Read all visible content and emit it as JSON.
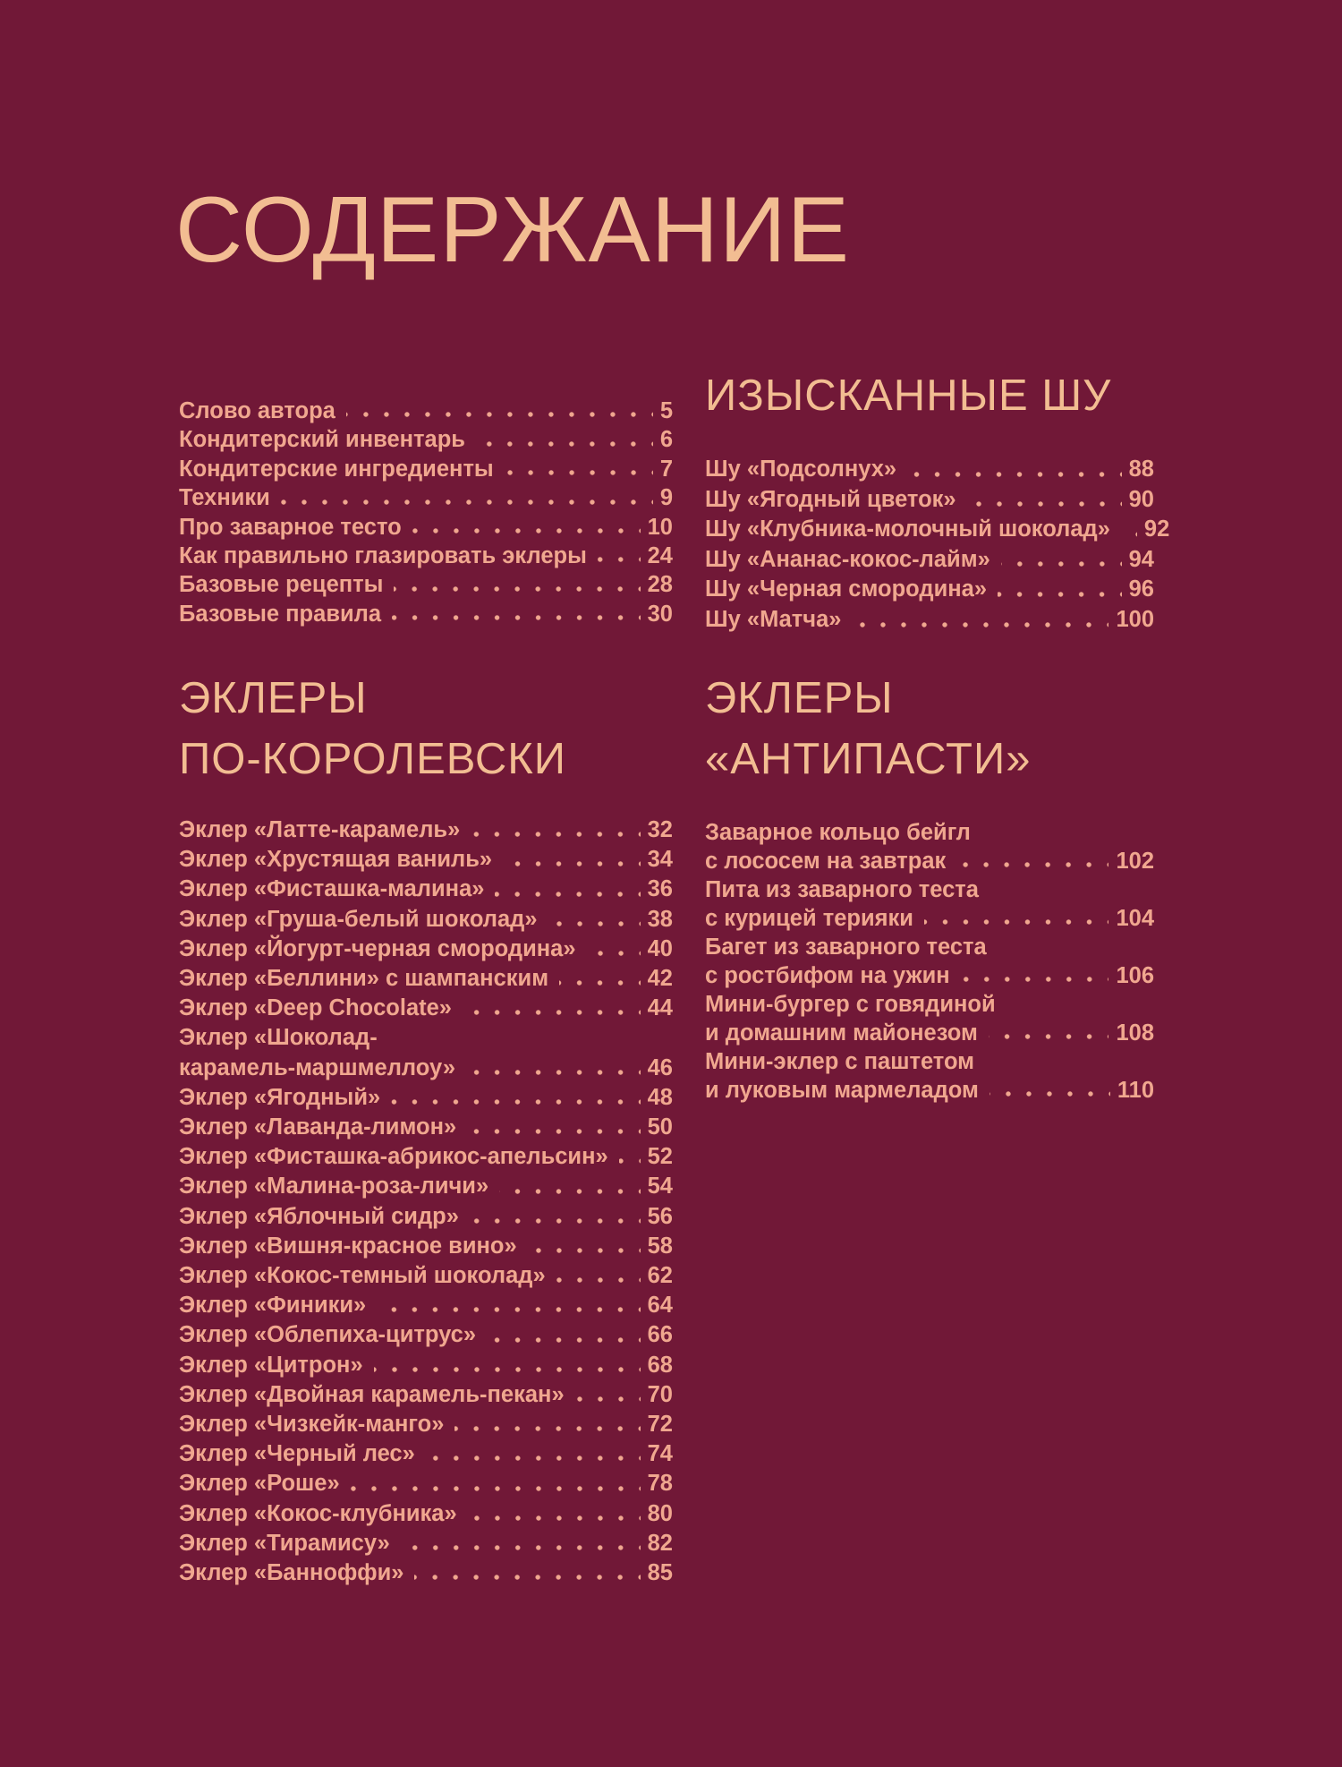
{
  "title": "СОДЕРЖАНИЕ",
  "colors": {
    "background": "#711837",
    "heading_text": "#f2bd92",
    "body_text": "#f0a78f"
  },
  "intro": {
    "items": [
      {
        "label": "Слово автора",
        "page": "5"
      },
      {
        "label": "Кондитерский инвентарь",
        "page": "6"
      },
      {
        "label": "Кондитерские ингредиенты",
        "page": "7"
      },
      {
        "label": "Техники",
        "page": "9"
      },
      {
        "label": "Про заварное тесто",
        "page": "10"
      },
      {
        "label": "Как правильно глазировать эклеры",
        "page": "24"
      },
      {
        "label": "Базовые рецепты",
        "page": "28"
      },
      {
        "label": "Базовые правила",
        "page": "30"
      }
    ]
  },
  "shu": {
    "heading": "ИЗЫСКАННЫЕ ШУ",
    "items": [
      {
        "label": "Шу «Подсолнух»",
        "page": "88"
      },
      {
        "label": "Шу «Ягодный цветок»",
        "page": "90"
      },
      {
        "label": "Шу «Клубника-молочный шоколад»",
        "page": "92"
      },
      {
        "label": "Шу «Ананас-кокос-лайм»",
        "page": "94"
      },
      {
        "label": "Шу «Черная смородина»",
        "page": "96"
      },
      {
        "label": "Шу «Матча»",
        "page": "100"
      }
    ]
  },
  "royal": {
    "heading_line1": "ЭКЛЕРЫ",
    "heading_line2": "ПО-КОРОЛЕВСКИ",
    "items": [
      {
        "label": "Эклер «Латте-карамель»",
        "page": "32"
      },
      {
        "label": "Эклер «Хрустящая ваниль»",
        "page": "34"
      },
      {
        "label": "Эклер «Фисташка-малина»",
        "page": "36"
      },
      {
        "label": "Эклер «Груша-белый шоколад»",
        "page": "38"
      },
      {
        "label": "Эклер «Йогурт-черная смородина»",
        "page": "40"
      },
      {
        "label": "Эклер «Беллини» с шампанским",
        "page": "42"
      },
      {
        "label": "Эклер «Deep Chocolate»",
        "page": "44"
      },
      {
        "label": "Эклер «Шоколад-",
        "page": ""
      },
      {
        "label": "карамель-маршмеллоу»",
        "page": "46"
      },
      {
        "label": "Эклер «Ягодный»",
        "page": "48"
      },
      {
        "label": "Эклер «Лаванда-лимон»",
        "page": "50"
      },
      {
        "label": "Эклер «Фисташка-абрикос-апельсин»",
        "page": "52"
      },
      {
        "label": "Эклер «Малина-роза-личи»",
        "page": "54"
      },
      {
        "label": "Эклер «Яблочный сидр»",
        "page": "56"
      },
      {
        "label": "Эклер «Вишня-красное вино»",
        "page": "58"
      },
      {
        "label": "Эклер «Кокос-темный шоколад»",
        "page": "62"
      },
      {
        "label": "Эклер «Финики»",
        "page": "64"
      },
      {
        "label": "Эклер «Облепиха-цитрус»",
        "page": "66"
      },
      {
        "label": "Эклер «Цитрон»",
        "page": "68"
      },
      {
        "label": "Эклер «Двойная карамель-пекан»",
        "page": "70"
      },
      {
        "label": "Эклер «Чизкейк-манго»",
        "page": "72"
      },
      {
        "label": "Эклер «Черный лес»",
        "page": "74"
      },
      {
        "label": "Эклер «Роше»",
        "page": "78"
      },
      {
        "label": "Эклер «Кокос-клубника»",
        "page": "80"
      },
      {
        "label": "Эклер «Тирамису»",
        "page": "82"
      },
      {
        "label": "Эклер «Банноффи»",
        "page": "85"
      }
    ]
  },
  "antipasti": {
    "heading_line1": "ЭКЛЕРЫ",
    "heading_line2": "«АНТИПАСТИ»",
    "items": [
      {
        "label": "Заварное кольцо бейгл",
        "page": ""
      },
      {
        "label": "с лососем на завтрак",
        "page": "102"
      },
      {
        "label": "Пита из заварного теста",
        "page": ""
      },
      {
        "label": "с курицей терияки",
        "page": "104"
      },
      {
        "label": "Багет из заварного теста",
        "page": ""
      },
      {
        "label": "с ростбифом на ужин",
        "page": "106"
      },
      {
        "label": "Мини-бургер с говядиной",
        "page": ""
      },
      {
        "label": "и домашним майонезом",
        "page": "108"
      },
      {
        "label": "Мини-эклер с паштетом",
        "page": ""
      },
      {
        "label": "и луковым мармеладом",
        "page": "110"
      }
    ]
  }
}
